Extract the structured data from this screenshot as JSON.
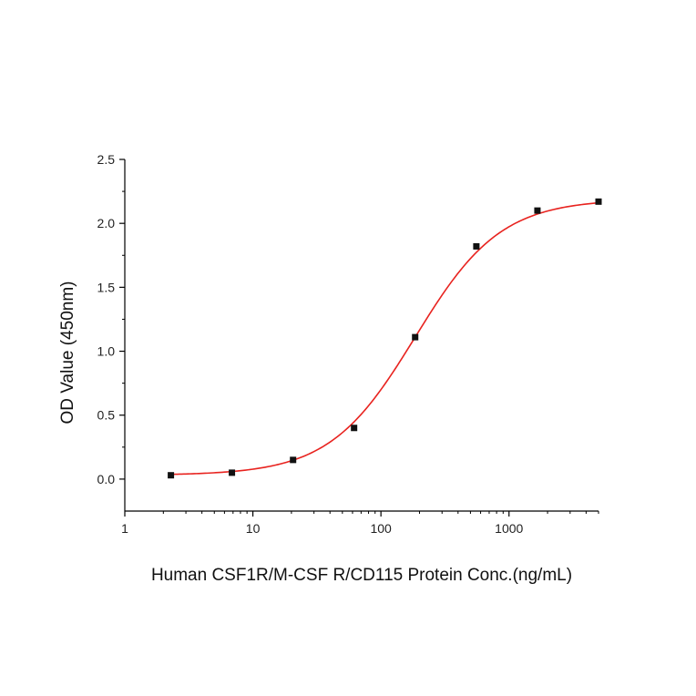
{
  "chart_data": {
    "type": "scatter",
    "xlabel": "Human CSF1R/M-CSF R/CD115 Protein Conc.(ng/mL)",
    "ylabel": "OD Value (450nm)",
    "x_scale": "log",
    "xlim": [
      1,
      5000
    ],
    "ylim": [
      -0.25,
      2.5
    ],
    "x_ticks": [
      1,
      10,
      100,
      1000
    ],
    "x_tick_labels": [
      "1",
      "10",
      "100",
      "1000"
    ],
    "y_ticks": [
      0.0,
      0.5,
      1.0,
      1.5,
      2.0,
      2.5
    ],
    "y_tick_labels": [
      "0.0",
      "0.5",
      "1.0",
      "1.5",
      "2.0",
      "2.5"
    ],
    "grid": false,
    "series": [
      {
        "marker": "square",
        "color": "#111111",
        "x": [
          2.29,
          6.86,
          20.6,
          61.7,
          185,
          556,
          1667,
          5000
        ],
        "y": [
          0.03,
          0.05,
          0.15,
          0.4,
          1.11,
          1.82,
          2.1,
          2.17
        ]
      }
    ],
    "fit": {
      "model": "4PL",
      "color": "#e8231f",
      "bottom": 0.03,
      "top": 2.19,
      "ec50": 185,
      "hill": 1.3
    }
  }
}
